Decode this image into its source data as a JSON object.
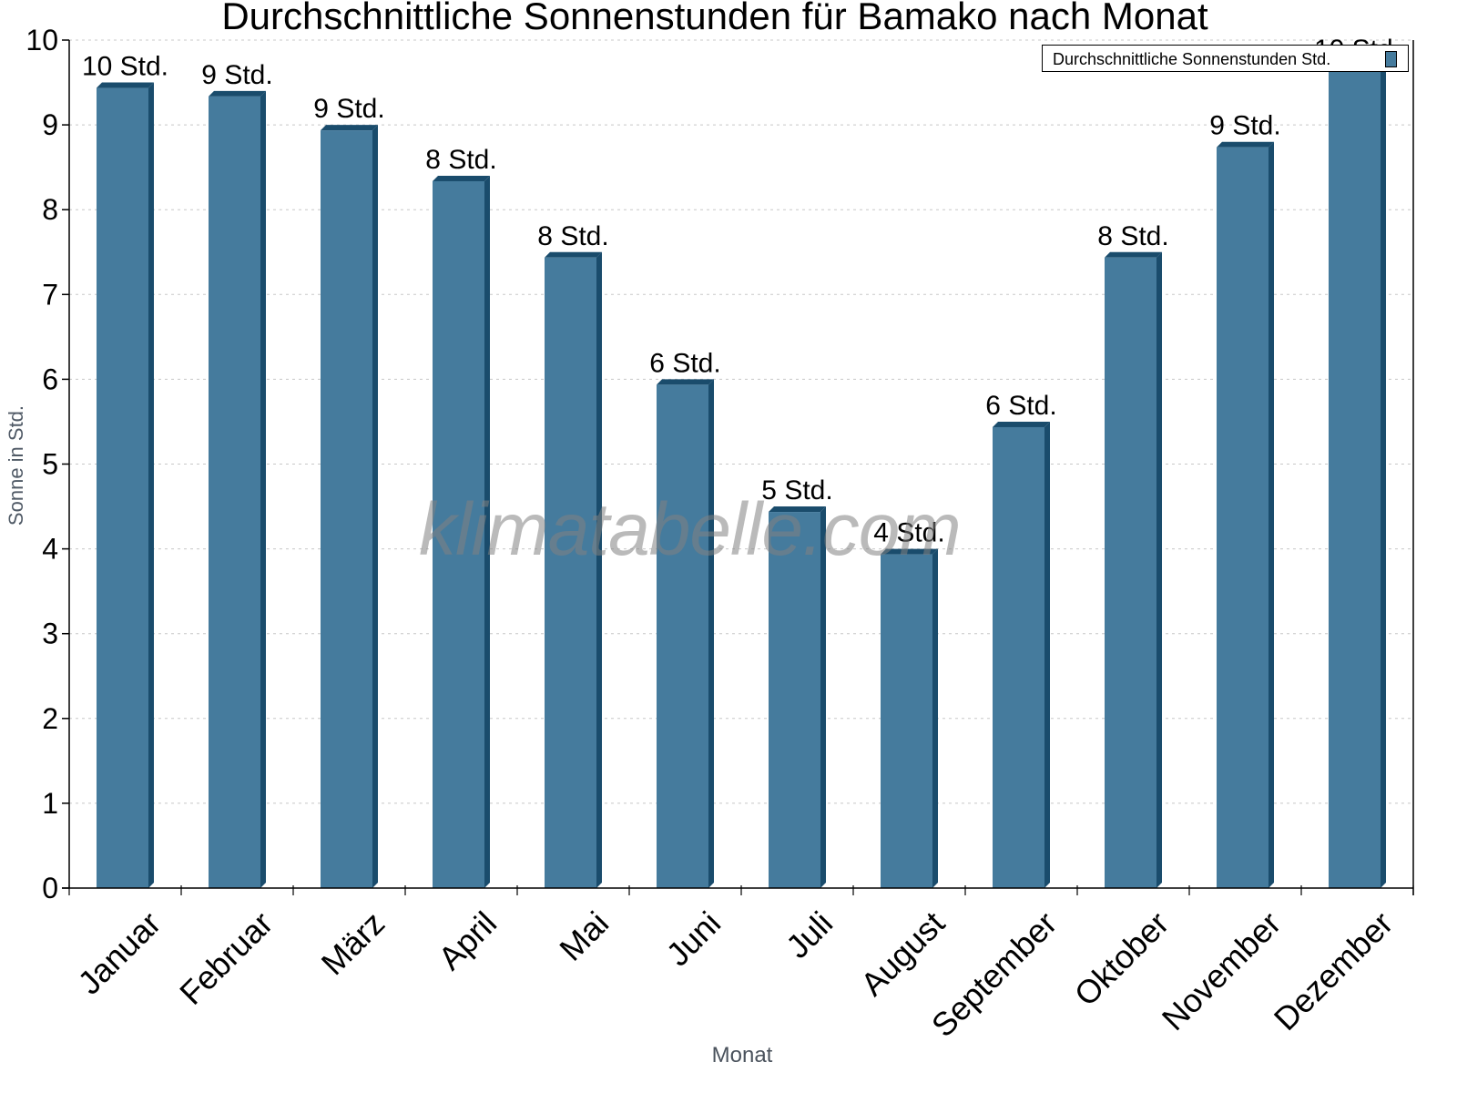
{
  "chart_data": {
    "type": "bar",
    "title": "Durchschnittliche Sonnenstunden für Bamako nach Monat",
    "xlabel": "Monat",
    "ylabel": "Sonne in Std.",
    "ylim": [
      0,
      10
    ],
    "yticks": [
      0,
      1,
      2,
      3,
      4,
      5,
      6,
      7,
      8,
      9,
      10
    ],
    "grid": true,
    "legend_position": "top-right",
    "categories": [
      "Januar",
      "Februar",
      "März",
      "April",
      "Mai",
      "Juni",
      "Juli",
      "August",
      "September",
      "Oktober",
      "November",
      "Dezember"
    ],
    "series": [
      {
        "name": "Durchschnittliche Sonnenstunden Std.",
        "color": "#457b9d",
        "values": [
          9.5,
          9.4,
          9.0,
          8.4,
          7.5,
          6.0,
          4.5,
          4.0,
          5.5,
          7.5,
          8.8,
          9.7
        ],
        "data_labels": [
          "10 Std.",
          "9 Std.",
          "9 Std.",
          "8 Std.",
          "8 Std.",
          "6 Std.",
          "5 Std.",
          "4 Std.",
          "6 Std.",
          "8 Std.",
          "9 Std.",
          "10 Std."
        ]
      }
    ],
    "watermark": "klimatabelle.com"
  },
  "colors": {
    "bar_face": "#457b9d",
    "bar_side": "#1a4c6c",
    "grid": "#c8c8c8",
    "axis": "#000000"
  }
}
